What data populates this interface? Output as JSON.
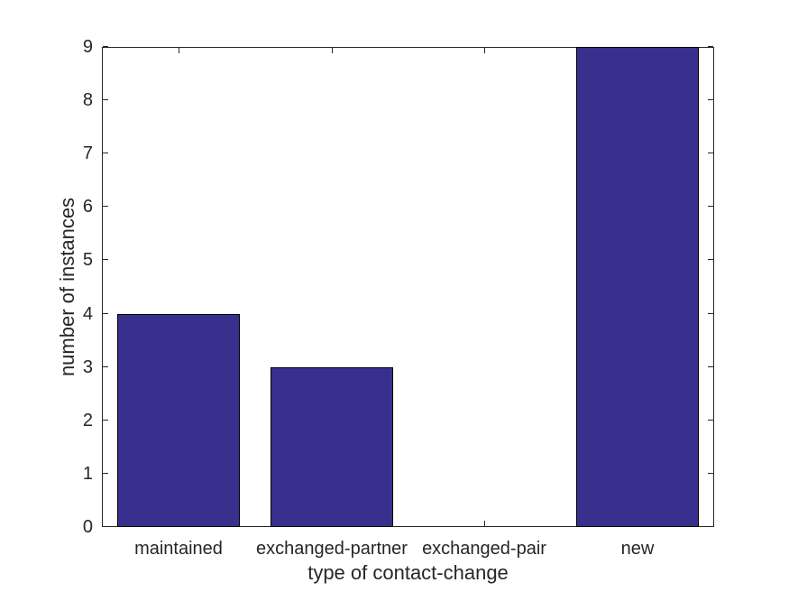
{
  "figure": {
    "background_color": "#FFFFFF"
  },
  "chart_data": {
    "type": "bar",
    "title": "",
    "categories": [
      "maintained",
      "exchanged-partner",
      "exchanged-pair",
      "new"
    ],
    "values": [
      4,
      3,
      0,
      9
    ],
    "xlabel": "type of contact-change",
    "ylabel": "number of instances",
    "ylim": [
      0,
      9
    ],
    "yticks": [
      0,
      1,
      2,
      3,
      4,
      5,
      6,
      7,
      8,
      9
    ],
    "bar_color": "#37308C",
    "bar_edge_color": "#000000",
    "axis_color": "#262626",
    "text_color": "#262626",
    "bar_width_fraction": 0.8,
    "grid": false,
    "legend": null,
    "tick_direction": "in",
    "box": true
  }
}
